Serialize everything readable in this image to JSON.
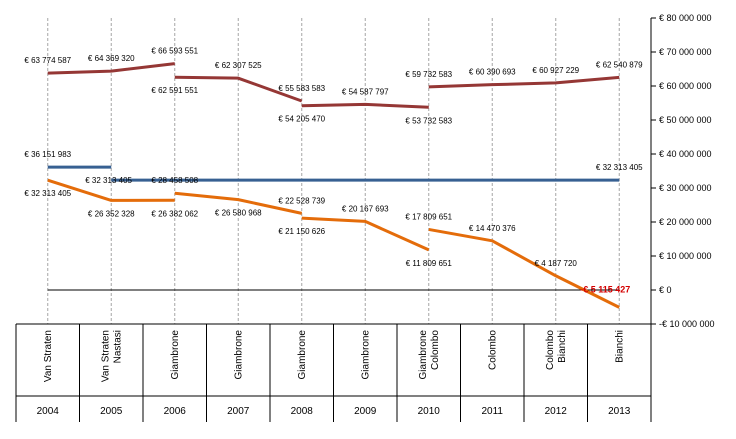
{
  "chart_data": {
    "type": "line",
    "years": [
      "2004",
      "2005",
      "2006",
      "2007",
      "2008",
      "2009",
      "2010",
      "2011",
      "2012",
      "2013"
    ],
    "presidents": [
      [
        "Van Straten"
      ],
      [
        "Van Straten",
        "Nastasi"
      ],
      [
        "Giambrone"
      ],
      [
        "Giambrone"
      ],
      [
        "Giambrone"
      ],
      [
        "Giambrone"
      ],
      [
        "Giambrone",
        "Colombo"
      ],
      [
        "Colombo"
      ],
      [
        "Colombo",
        "Bianchi"
      ],
      [
        "Bianchi"
      ]
    ],
    "ylim": [
      -10000000,
      80000000
    ],
    "yticks": [
      {
        "v": 80000000,
        "t": "€ 80 000 000"
      },
      {
        "v": 70000000,
        "t": "€ 70 000 000"
      },
      {
        "v": 60000000,
        "t": "€ 60 000 000"
      },
      {
        "v": 50000000,
        "t": "€ 50 000 000"
      },
      {
        "v": 40000000,
        "t": "€ 40 000 000"
      },
      {
        "v": 30000000,
        "t": "€ 30 000 000"
      },
      {
        "v": 20000000,
        "t": "€ 20 000 000"
      },
      {
        "v": 10000000,
        "t": "€ 10 000 000"
      },
      {
        "v": 0,
        "t": "€ 0"
      },
      {
        "v": -10000000,
        "t": "-€ 10 000 000"
      }
    ],
    "colors": {
      "red": "#953735",
      "blue": "#376092",
      "orange": "#e46c0a",
      "axis": "#000000",
      "guide": "#a6a6a6",
      "neg_label": "#d40000"
    },
    "series": [
      {
        "color": "red",
        "segments": [
          [
            {
              "x": 0,
              "y": 63774587
            },
            {
              "x": 1,
              "y": 64369320
            },
            {
              "x": 2,
              "y": 66593551
            }
          ],
          [
            {
              "x": 2,
              "y": 62591551
            },
            {
              "x": 3,
              "y": 62307525
            },
            {
              "x": 4,
              "y": 55583583
            }
          ],
          [
            {
              "x": 4,
              "y": 54205470
            },
            {
              "x": 5,
              "y": 54587797
            },
            {
              "x": 6,
              "y": 53732583
            }
          ],
          [
            {
              "x": 6,
              "y": 59732583
            },
            {
              "x": 7,
              "y": 60390693
            },
            {
              "x": 8,
              "y": 60927229
            },
            {
              "x": 9,
              "y": 62540879
            }
          ]
        ]
      },
      {
        "color": "blue",
        "segments": [
          [
            {
              "x": 0,
              "y": 36151983
            },
            {
              "x": 1,
              "y": 36151983
            }
          ],
          [
            {
              "x": 1,
              "y": 32313405
            },
            {
              "x": 9,
              "y": 32313405
            }
          ]
        ]
      },
      {
        "color": "orange",
        "segments": [
          [
            {
              "x": 0,
              "y": 32313405
            },
            {
              "x": 1,
              "y": 26352328
            },
            {
              "x": 2,
              "y": 26382062
            }
          ],
          [
            {
              "x": 2,
              "y": 28458508
            },
            {
              "x": 3,
              "y": 26580968
            },
            {
              "x": 4,
              "y": 22528739
            }
          ],
          [
            {
              "x": 4,
              "y": 21150626
            },
            {
              "x": 5,
              "y": 20167693
            },
            {
              "x": 6,
              "y": 11809651
            }
          ],
          [
            {
              "x": 6,
              "y": 17809651
            },
            {
              "x": 7,
              "y": 14470376
            },
            {
              "x": 8,
              "y": 4187720
            },
            {
              "x": 9,
              "y": -5115427
            }
          ]
        ]
      }
    ],
    "labels": [
      {
        "t": "€ 63 774 587",
        "x": 0,
        "y": 63774587,
        "pos": "above"
      },
      {
        "t": "€ 64 369 320",
        "x": 1,
        "y": 64369320,
        "pos": "above"
      },
      {
        "t": "€ 66 593 551",
        "x": 2,
        "y": 66593551,
        "pos": "above"
      },
      {
        "t": "€ 62 591 551",
        "x": 2,
        "y": 62591551,
        "pos": "below"
      },
      {
        "t": "€ 62 307 525",
        "x": 3,
        "y": 62307525,
        "pos": "above"
      },
      {
        "t": "€ 55 583 583",
        "x": 4,
        "y": 55583583,
        "pos": "above"
      },
      {
        "t": "€ 54 205 470",
        "x": 4,
        "y": 54205470,
        "pos": "below"
      },
      {
        "t": "€ 54 587 797",
        "x": 5,
        "y": 54587797,
        "pos": "above"
      },
      {
        "t": "€ 53 732 583",
        "x": 6,
        "y": 53732583,
        "pos": "below"
      },
      {
        "t": "€ 59 732 583",
        "x": 6,
        "y": 59732583,
        "pos": "above"
      },
      {
        "t": "€ 60 390 693",
        "x": 7,
        "y": 60390693,
        "pos": "above"
      },
      {
        "t": "€ 60 927 229",
        "x": 8,
        "y": 60927229,
        "pos": "above"
      },
      {
        "t": "€ 62 540 879",
        "x": 9,
        "y": 62540879,
        "pos": "above"
      },
      {
        "t": "€ 36 151 983",
        "x": 0,
        "y": 36151983,
        "pos": "above"
      },
      {
        "t": "€ 32 313 405",
        "x": 1,
        "y": 32313405,
        "pos": "right"
      },
      {
        "t": "€ 32 313 405",
        "x": 9,
        "y": 32313405,
        "pos": "above"
      },
      {
        "t": "€ 32 313 405",
        "x": 0,
        "y": 32313405,
        "pos": "below"
      },
      {
        "t": "€ 26 352 328",
        "x": 1,
        "y": 26352328,
        "pos": "below"
      },
      {
        "t": "€ 26 382 062",
        "x": 2,
        "y": 26382062,
        "pos": "below"
      },
      {
        "t": "€ 28 458 508",
        "x": 2,
        "y": 28458508,
        "pos": "above"
      },
      {
        "t": "€ 26 580 968",
        "x": 3,
        "y": 26580968,
        "pos": "below"
      },
      {
        "t": "€ 22 528 739",
        "x": 4,
        "y": 22528739,
        "pos": "above"
      },
      {
        "t": "€ 21 150 626",
        "x": 4,
        "y": 21150626,
        "pos": "below"
      },
      {
        "t": "€ 20 167 693",
        "x": 5,
        "y": 20167693,
        "pos": "above"
      },
      {
        "t": "€ 17 809 651",
        "x": 6,
        "y": 17809651,
        "pos": "above"
      },
      {
        "t": "€ 11 809 651",
        "x": 6,
        "y": 11809651,
        "pos": "below"
      },
      {
        "t": "€ 14 470 376",
        "x": 7,
        "y": 14470376,
        "pos": "above"
      },
      {
        "t": "€ 4 187 720",
        "x": 8,
        "y": 4187720,
        "pos": "above"
      },
      {
        "t": "-€ 5 115 427",
        "x": 9,
        "y": -5115427,
        "pos": "neg"
      }
    ]
  }
}
